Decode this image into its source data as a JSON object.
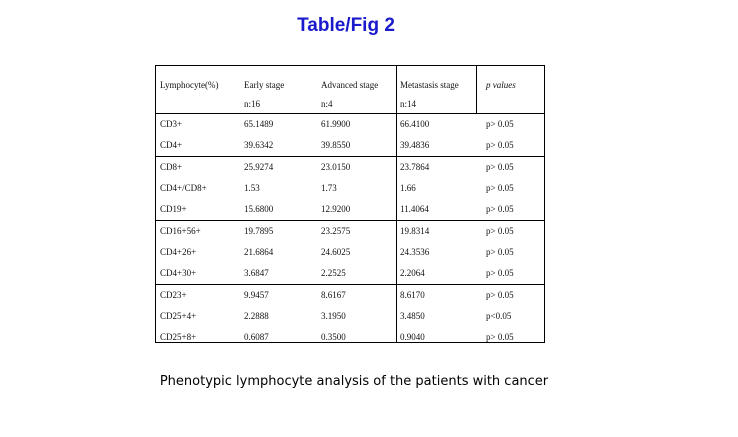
{
  "title": "Table/Fig 2",
  "table": {
    "columns": [
      "Lymphocyte(%)",
      "Early stage",
      "Advanced stage",
      "Metastasis stage",
      "p values"
    ],
    "counts": [
      "n:16",
      "n:4",
      "n:14"
    ],
    "groups": [
      [
        [
          "CD3+",
          "65.1489",
          "61.9900",
          "66.4100",
          "p> 0.05"
        ],
        [
          "CD4+",
          "39.6342",
          "39.8550",
          "39.4836",
          "p> 0.05"
        ]
      ],
      [
        [
          "CD8+",
          "25.9274",
          "23.0150",
          "23.7864",
          "p> 0.05"
        ],
        [
          "CD4+/CD8+",
          "1.53",
          "1.73",
          "1.66",
          "p> 0.05"
        ],
        [
          "CD19+",
          "15.6800",
          "12.9200",
          "11.4064",
          "p> 0.05"
        ]
      ],
      [
        [
          "CD16+56+",
          "19.7895",
          "23.2575",
          "19.8314",
          "p> 0.05"
        ],
        [
          "CD4+26+",
          "21.6864",
          "24.6025",
          "24.3536",
          "p> 0.05"
        ],
        [
          "CD4+30+",
          "3.6847",
          "2.2525",
          "2.2064",
          "p> 0.05"
        ]
      ],
      [
        [
          "CD23+",
          "9.9457",
          "8.6167",
          "8.6170",
          "p> 0.05"
        ],
        [
          "CD25+4+",
          "2.2888",
          "3.1950",
          "3.4850",
          "p<0.05"
        ],
        [
          "CD25+8+",
          "0.6087",
          "0.3500",
          "0.9040",
          "p> 0.05"
        ]
      ]
    ]
  },
  "caption": "Phenotypic lymphocyte analysis of the patients with cancer"
}
